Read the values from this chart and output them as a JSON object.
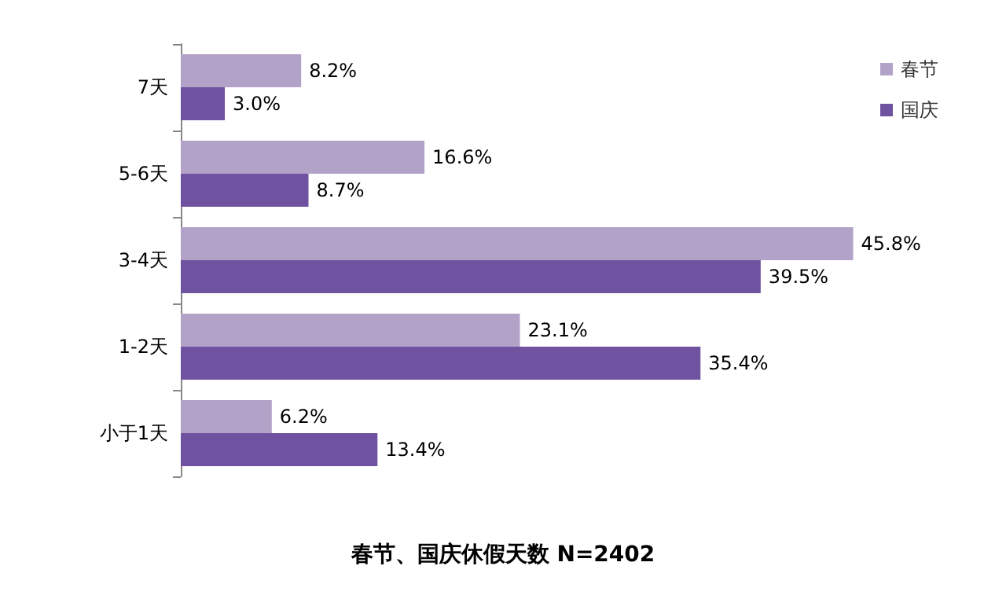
{
  "chart_data": {
    "type": "bar",
    "orientation": "horizontal",
    "title": "春节、国庆休假天数 N=2402",
    "categories": [
      "7天",
      "5-6天",
      "3-4天",
      "1-2天",
      "小于1天"
    ],
    "series": [
      {
        "name": "春节",
        "color": "#b3a2c7",
        "values": [
          8.2,
          16.6,
          45.8,
          23.1,
          6.2
        ],
        "value_labels": [
          "8.2%",
          "16.6%",
          "45.8%",
          "23.1%",
          "6.2%"
        ]
      },
      {
        "name": "国庆",
        "color": "#6f52a0",
        "values": [
          3.0,
          8.7,
          39.5,
          35.4,
          13.4
        ],
        "value_labels": [
          "3.0%",
          "8.7%",
          "39.5%",
          "35.4%",
          "13.4%"
        ]
      }
    ],
    "legend": "top right"
  }
}
